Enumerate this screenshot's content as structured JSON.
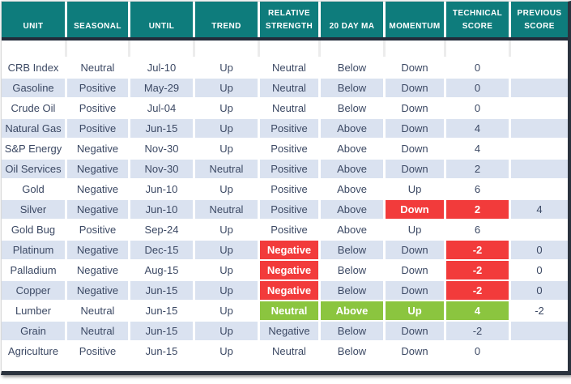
{
  "chart_data": {
    "type": "table",
    "columns": [
      "UNIT",
      "SEASONAL",
      "UNTIL",
      "TREND",
      "RELATIVE STRENGTH",
      "20 DAY MA",
      "MOMENTUM",
      "TECHNICAL SCORE",
      "PREVIOUS SCORE"
    ],
    "rows": [
      {
        "unit": "CRB Index",
        "seasonal": "Neutral",
        "until": "Jul-10",
        "trend": "Up",
        "relative_strength": "Neutral",
        "twenty_day_ma": "Below",
        "momentum": "Down",
        "technical_score": "0",
        "previous_score": ""
      },
      {
        "unit": "Gasoline",
        "seasonal": "Positive",
        "until": "May-29",
        "trend": "Up",
        "relative_strength": "Neutral",
        "twenty_day_ma": "Below",
        "momentum": "Down",
        "technical_score": "0",
        "previous_score": ""
      },
      {
        "unit": "Crude Oil",
        "seasonal": "Positive",
        "until": "Jul-04",
        "trend": "Up",
        "relative_strength": "Neutral",
        "twenty_day_ma": "Below",
        "momentum": "Down",
        "technical_score": "0",
        "previous_score": ""
      },
      {
        "unit": "Natural Gas",
        "seasonal": "Positive",
        "until": "Jun-15",
        "trend": "Up",
        "relative_strength": "Positive",
        "twenty_day_ma": "Above",
        "momentum": "Down",
        "technical_score": "4",
        "previous_score": ""
      },
      {
        "unit": "S&P Energy",
        "seasonal": "Negative",
        "until": "Nov-30",
        "trend": "Up",
        "relative_strength": "Positive",
        "twenty_day_ma": "Above",
        "momentum": "Down",
        "technical_score": "4",
        "previous_score": ""
      },
      {
        "unit": "Oil Services",
        "seasonal": "Negative",
        "until": "Nov-30",
        "trend": "Neutral",
        "relative_strength": "Positive",
        "twenty_day_ma": "Above",
        "momentum": "Down",
        "technical_score": "2",
        "previous_score": ""
      },
      {
        "unit": "Gold",
        "seasonal": "Negative",
        "until": "Jun-10",
        "trend": "Up",
        "relative_strength": "Positive",
        "twenty_day_ma": "Above",
        "momentum": "Up",
        "technical_score": "6",
        "previous_score": ""
      },
      {
        "unit": "Silver",
        "seasonal": "Negative",
        "until": "Jun-10",
        "trend": "Neutral",
        "relative_strength": "Positive",
        "twenty_day_ma": "Above",
        "momentum": "Down",
        "technical_score": "2",
        "previous_score": "4",
        "highlights": {
          "momentum": "red",
          "technical_score": "red"
        }
      },
      {
        "unit": "Gold Bug",
        "seasonal": "Positive",
        "until": "Sep-24",
        "trend": "Up",
        "relative_strength": "Positive",
        "twenty_day_ma": "Above",
        "momentum": "Up",
        "technical_score": "6",
        "previous_score": ""
      },
      {
        "unit": "Platinum",
        "seasonal": "Negative",
        "until": "Dec-15",
        "trend": "Up",
        "relative_strength": "Negative",
        "twenty_day_ma": "Below",
        "momentum": "Down",
        "technical_score": "-2",
        "previous_score": "0",
        "highlights": {
          "relative_strength": "red",
          "technical_score": "red"
        }
      },
      {
        "unit": "Palladium",
        "seasonal": "Negative",
        "until": "Aug-15",
        "trend": "Up",
        "relative_strength": "Negative",
        "twenty_day_ma": "Below",
        "momentum": "Down",
        "technical_score": "-2",
        "previous_score": "0",
        "highlights": {
          "relative_strength": "red",
          "technical_score": "red"
        }
      },
      {
        "unit": "Copper",
        "seasonal": "Negative",
        "until": "Jun-15",
        "trend": "Up",
        "relative_strength": "Negative",
        "twenty_day_ma": "Below",
        "momentum": "Down",
        "technical_score": "-2",
        "previous_score": "0",
        "highlights": {
          "relative_strength": "red",
          "technical_score": "red"
        }
      },
      {
        "unit": "Lumber",
        "seasonal": "Neutral",
        "until": "Jun-15",
        "trend": "Up",
        "relative_strength": "Neutral",
        "twenty_day_ma": "Above",
        "momentum": "Up",
        "technical_score": "4",
        "previous_score": "-2",
        "highlights": {
          "relative_strength": "green",
          "twenty_day_ma": "green",
          "momentum": "green",
          "technical_score": "green"
        }
      },
      {
        "unit": "Grain",
        "seasonal": "Neutral",
        "until": "Jun-15",
        "trend": "Up",
        "relative_strength": "Negative",
        "twenty_day_ma": "Below",
        "momentum": "Down",
        "technical_score": "-2",
        "previous_score": ""
      },
      {
        "unit": "Agriculture",
        "seasonal": "Positive",
        "until": "Jun-15",
        "trend": "Up",
        "relative_strength": "Neutral",
        "twenty_day_ma": "Below",
        "momentum": "Down",
        "technical_score": "0",
        "previous_score": ""
      }
    ]
  },
  "colors": {
    "header_bg": "#0e7c7c",
    "header_text": "#ffffff",
    "alt_row_bg": "#dae2f0",
    "body_text": "#3c4964",
    "highlight_red": "#f23b3b",
    "highlight_green": "#8bc53f",
    "divider_bar": "#222c3a"
  }
}
